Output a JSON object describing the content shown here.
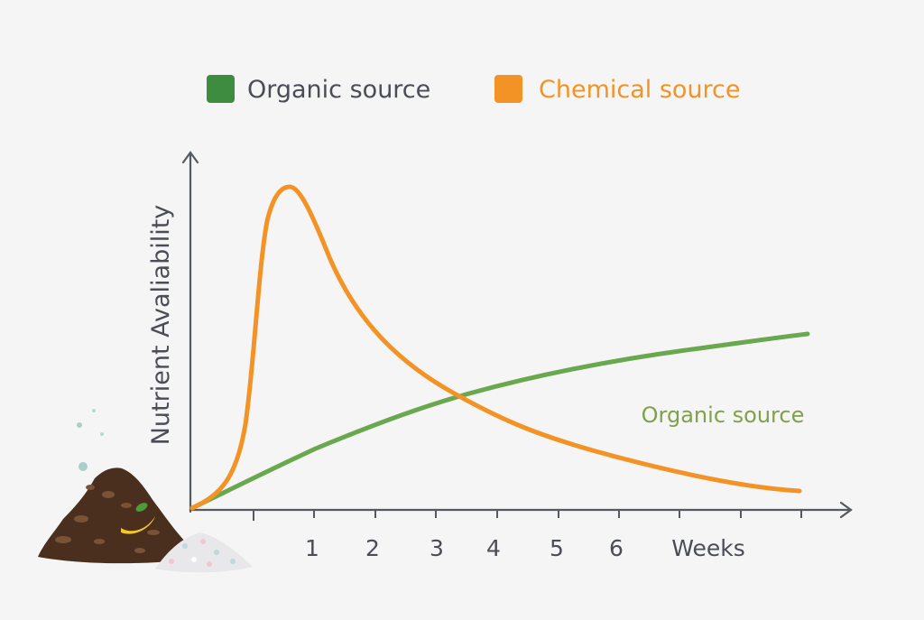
{
  "legend": {
    "items": [
      {
        "label": "Organic source",
        "color": "#3d8c40",
        "text_color": "#4a4d55"
      },
      {
        "label": "Chemical source",
        "color": "#f39325",
        "text_color": "#f39325"
      }
    ]
  },
  "axes": {
    "ylabel": "Nutrient Avaliability",
    "xlabel": "Weeks",
    "axis_color": "#555a60"
  },
  "annotation": {
    "text": "Organic source",
    "color": "#7fa14a"
  },
  "chart_data": {
    "type": "line",
    "title": "",
    "xlabel": "Weeks",
    "ylabel": "Nutrient Avaliability",
    "x_tick_labels": [
      "1",
      "2",
      "3",
      "4",
      "5",
      "6",
      "Weeks"
    ],
    "xlim": [
      0,
      10
    ],
    "ylim": [
      0,
      10
    ],
    "grid": false,
    "legend_position": "top",
    "series": [
      {
        "name": "Organic source",
        "color": "#6aa84f",
        "x": [
          0,
          1,
          2,
          3,
          4,
          5,
          6,
          7,
          8,
          9,
          10
        ],
        "y": [
          0,
          0.6,
          1.25,
          1.8,
          2.4,
          2.95,
          3.4,
          3.8,
          4.1,
          4.4,
          4.65
        ]
      },
      {
        "name": "Chemical source",
        "color": "#f39325",
        "x": [
          0,
          0.5,
          0.8,
          1.0,
          1.2,
          1.6,
          2,
          2.5,
          3,
          4,
          5,
          6,
          7,
          8,
          9,
          10
        ],
        "y": [
          0,
          0.6,
          2.2,
          5.0,
          8.0,
          10.0,
          8.2,
          6.5,
          5.5,
          4.1,
          3.0,
          2.2,
          1.5,
          1.0,
          0.6,
          0.3
        ]
      }
    ],
    "annotations": [
      {
        "text": "Organic source",
        "near_series": "Organic source"
      }
    ]
  }
}
